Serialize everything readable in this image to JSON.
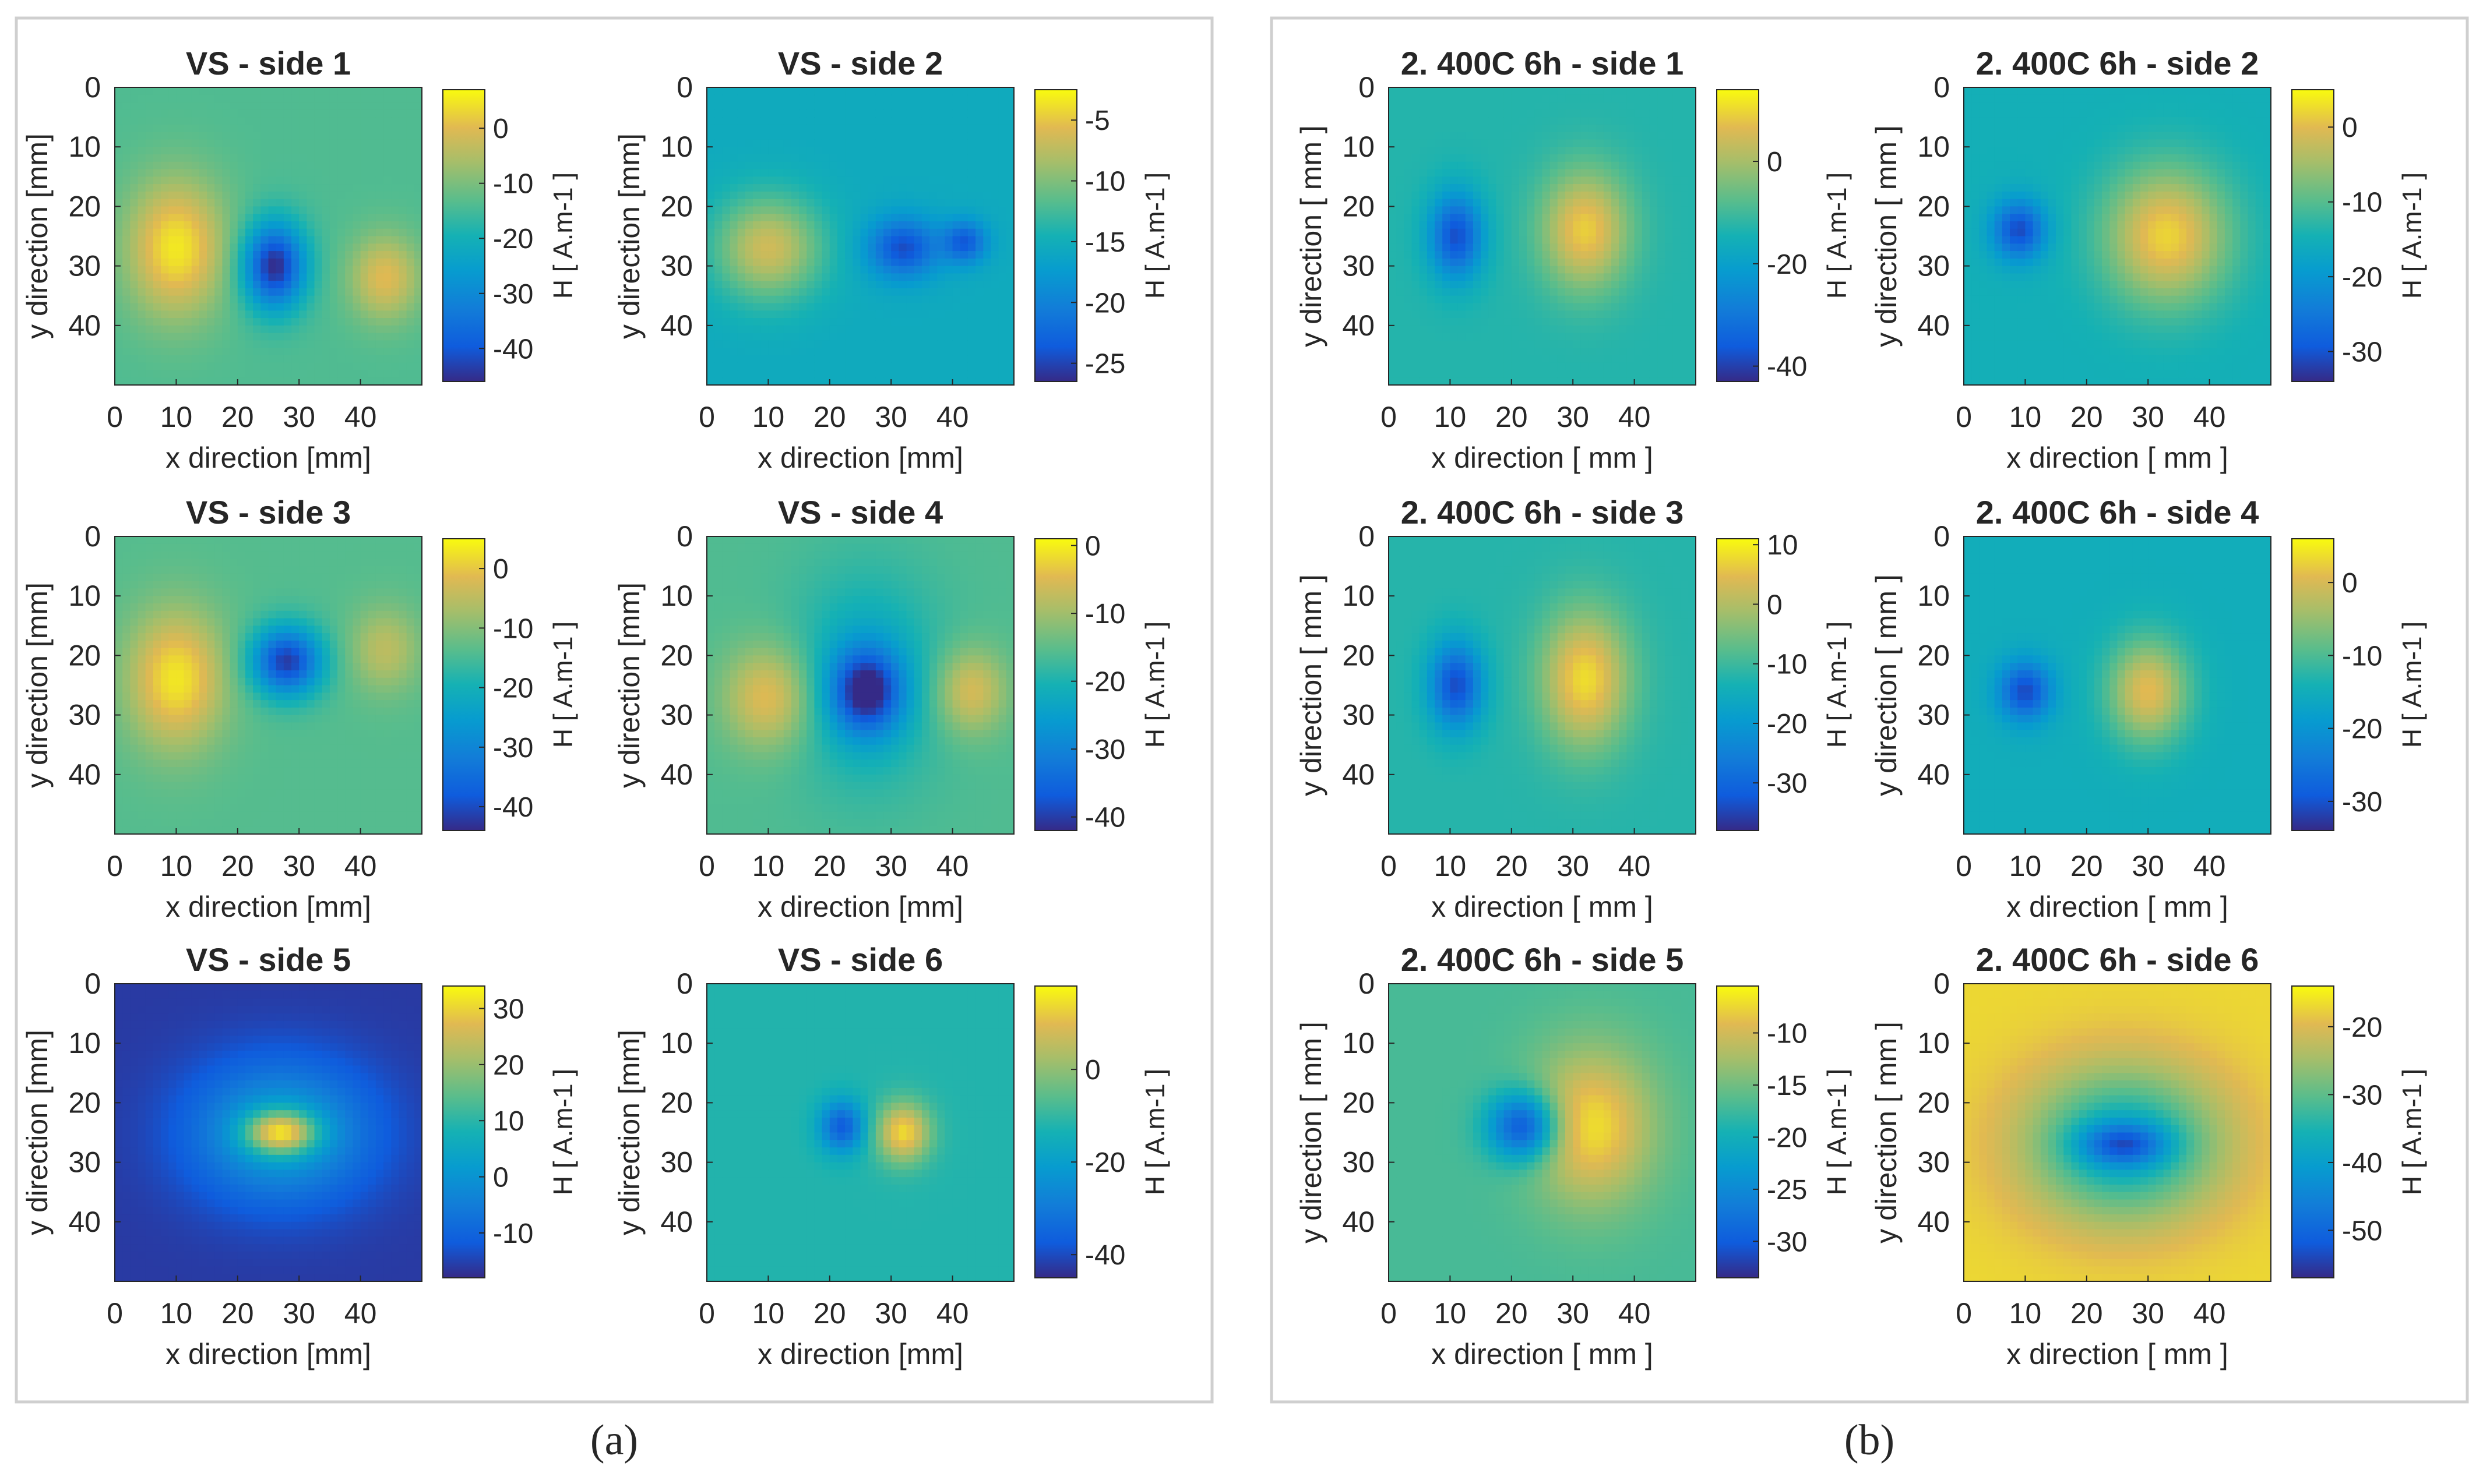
{
  "panels": [
    {
      "label": "(a)"
    },
    {
      "label": "(b)"
    }
  ],
  "chart_data": [
    {
      "type": "heatmap",
      "title": "VS - side 1",
      "xlabel": "x direction [mm]",
      "ylabel": "y direction [mm]",
      "cbar_label": "H [ A.m-1 ]",
      "xticks": [
        0,
        10,
        20,
        30,
        40
      ],
      "yticks": [
        0,
        10,
        20,
        30,
        40
      ],
      "extent": [
        0,
        50
      ],
      "clim": [
        -46,
        7
      ],
      "cbar_ticks": [
        0,
        -10,
        -20,
        -30,
        -40
      ],
      "base": -14,
      "blobs": [
        {
          "x": 10,
          "y": 27,
          "amp": 19,
          "sx": 5.5,
          "sy": 8
        },
        {
          "x": 26,
          "y": 30,
          "amp": -32,
          "sx": 3.5,
          "sy": 5
        },
        {
          "x": 44,
          "y": 32,
          "amp": 14,
          "sx": 4,
          "sy": 5
        }
      ]
    },
    {
      "type": "heatmap",
      "title": "VS - side 2",
      "xlabel": "x direction [mm]",
      "ylabel": "y direction [mm]",
      "cbar_label": "H [ A.m-1 ]",
      "xticks": [
        0,
        10,
        20,
        30,
        40
      ],
      "yticks": [
        0,
        10,
        20,
        30,
        40
      ],
      "extent": [
        0,
        50
      ],
      "clim": [
        -26.5,
        -2.5
      ],
      "cbar_ticks": [
        -5,
        -10,
        -15,
        -20,
        -25
      ],
      "base": -15.5,
      "blobs": [
        {
          "x": 10,
          "y": 27,
          "amp": 9,
          "sx": 6,
          "sy": 6
        },
        {
          "x": 32,
          "y": 27,
          "amp": -9,
          "sx": 4,
          "sy": 3.5
        },
        {
          "x": 42,
          "y": 26,
          "amp": -8,
          "sx": 2.5,
          "sy": 2.5
        }
      ]
    },
    {
      "type": "heatmap",
      "title": "VS - side 3",
      "xlabel": "x direction [mm]",
      "ylabel": "y direction [mm]",
      "cbar_label": "H [ A.m-1 ]",
      "xticks": [
        0,
        10,
        20,
        30,
        40
      ],
      "yticks": [
        0,
        10,
        20,
        30,
        40
      ],
      "extent": [
        0,
        50
      ],
      "clim": [
        -44,
        5
      ],
      "cbar_ticks": [
        0,
        -10,
        -20,
        -30,
        -40
      ],
      "base": -14,
      "blobs": [
        {
          "x": 10,
          "y": 24,
          "amp": 17,
          "sx": 5.5,
          "sy": 8
        },
        {
          "x": 28,
          "y": 21,
          "amp": -28,
          "sx": 4,
          "sy": 4
        },
        {
          "x": 44,
          "y": 19,
          "amp": 9,
          "sx": 4,
          "sy": 5
        }
      ]
    },
    {
      "type": "heatmap",
      "title": "VS - side  4",
      "xlabel": "x direction [mm]",
      "ylabel": "y direction [mm]",
      "cbar_label": "H [ A.m-1 ]",
      "xticks": [
        0,
        10,
        20,
        30,
        40
      ],
      "yticks": [
        0,
        10,
        20,
        30,
        40
      ],
      "extent": [
        0,
        50
      ],
      "clim": [
        -42,
        1
      ],
      "cbar_ticks": [
        0,
        -10,
        -20,
        -30,
        -40
      ],
      "base": -16,
      "blobs": [
        {
          "x": 10,
          "y": 27,
          "amp": 12,
          "sx": 5,
          "sy": 6
        },
        {
          "x": 26,
          "y": 26,
          "amp": -22,
          "sx": 4,
          "sy": 5
        },
        {
          "x": 26,
          "y": 24,
          "amp": -8,
          "sx": 8,
          "sy": 12
        },
        {
          "x": 43,
          "y": 26,
          "amp": 11,
          "sx": 4,
          "sy": 5
        }
      ]
    },
    {
      "type": "heatmap",
      "title": "VS - side 5",
      "xlabel": "x direction [mm]",
      "ylabel": "y direction [mm]",
      "cbar_label": "H [ A.m-1 ]",
      "xticks": [
        0,
        10,
        20,
        30,
        40
      ],
      "yticks": [
        0,
        10,
        20,
        30,
        40
      ],
      "extent": [
        0,
        50
      ],
      "clim": [
        -18,
        34
      ],
      "cbar_ticks": [
        30,
        20,
        10,
        0,
        -10
      ],
      "base": -16,
      "blobs": [
        {
          "x": 27,
          "y": 25,
          "amp": 20,
          "sx": 10,
          "sy": 8
        },
        {
          "x": 27,
          "y": 25,
          "amp": 28,
          "sx": 4,
          "sy": 2.5
        }
      ]
    },
    {
      "type": "heatmap",
      "title": "VS - side 6",
      "xlabel": "x direction [mm]",
      "ylabel": "y direction [mm]",
      "cbar_label": "H [ A.m-1 ]",
      "xticks": [
        0,
        10,
        20,
        30,
        40
      ],
      "yticks": [
        0,
        10,
        20,
        30,
        40
      ],
      "extent": [
        0,
        50
      ],
      "clim": [
        -45,
        18
      ],
      "cbar_ticks": [
        0,
        -20,
        -40
      ],
      "base": -12,
      "blobs": [
        {
          "x": 22,
          "y": 24,
          "amp": -25,
          "sx": 2.5,
          "sy": 3
        },
        {
          "x": 32,
          "y": 25,
          "amp": 26,
          "sx": 3,
          "sy": 3.5
        }
      ]
    },
    {
      "type": "heatmap",
      "title": "2. 400C 6h - side 1",
      "xlabel": "x direction [ mm ]",
      "ylabel": "y direction [ mm ]",
      "cbar_label": "H [ A.m-1 ]",
      "xticks": [
        0,
        10,
        20,
        30,
        40
      ],
      "yticks": [
        0,
        10,
        20,
        30,
        40
      ],
      "extent": [
        0,
        50
      ],
      "clim": [
        -43,
        14
      ],
      "cbar_ticks": [
        0,
        -20,
        -40
      ],
      "base": -13,
      "blobs": [
        {
          "x": 11,
          "y": 25,
          "amp": -25,
          "sx": 3,
          "sy": 5
        },
        {
          "x": 32,
          "y": 24,
          "amp": 22,
          "sx": 5,
          "sy": 7
        }
      ]
    },
    {
      "type": "heatmap",
      "title": "2. 400C 6h - side 2",
      "xlabel": "x direction [ mm ]",
      "ylabel": "y direction [ mm ]",
      "cbar_label": "H [ A.m-1 ]",
      "xticks": [
        0,
        10,
        20,
        30,
        40
      ],
      "yticks": [
        0,
        10,
        20,
        30,
        40
      ],
      "extent": [
        0,
        50
      ],
      "clim": [
        -34,
        5
      ],
      "cbar_ticks": [
        0,
        -10,
        -20,
        -30
      ],
      "base": -15,
      "blobs": [
        {
          "x": 9,
          "y": 24,
          "amp": -16,
          "sx": 3,
          "sy": 3.5
        },
        {
          "x": 33,
          "y": 25,
          "amp": 17,
          "sx": 7,
          "sy": 8
        }
      ]
    },
    {
      "type": "heatmap",
      "title": "2. 400C 6h - side 3",
      "xlabel": "x direction [ mm ]",
      "ylabel": "y direction [ mm ]",
      "cbar_label": "H [ A.m-1 ]",
      "xticks": [
        0,
        10,
        20,
        30,
        40
      ],
      "yticks": [
        0,
        10,
        20,
        30,
        40
      ],
      "extent": [
        0,
        50
      ],
      "clim": [
        -38,
        11
      ],
      "cbar_ticks": [
        10,
        0,
        -10,
        -20,
        -30
      ],
      "base": -12,
      "blobs": [
        {
          "x": 11,
          "y": 25,
          "amp": -22,
          "sx": 3,
          "sy": 5
        },
        {
          "x": 32,
          "y": 24,
          "amp": 20,
          "sx": 5,
          "sy": 8
        }
      ]
    },
    {
      "type": "heatmap",
      "title": "2. 400C 6h - side 4",
      "xlabel": "x direction [ mm ]",
      "ylabel": "y direction [ mm ]",
      "cbar_label": "H [ A.m-1 ]",
      "xticks": [
        0,
        10,
        20,
        30,
        40
      ],
      "yticks": [
        0,
        10,
        20,
        30,
        40
      ],
      "extent": [
        0,
        50
      ],
      "clim": [
        -34,
        6
      ],
      "cbar_ticks": [
        0,
        -10,
        -20,
        -30
      ],
      "base": -15,
      "blobs": [
        {
          "x": 10,
          "y": 26,
          "amp": -16,
          "sx": 3,
          "sy": 3.5
        },
        {
          "x": 30,
          "y": 26,
          "amp": 16,
          "sx": 4.5,
          "sy": 6
        }
      ]
    },
    {
      "type": "heatmap",
      "title": "2. 400C 6h - side 5",
      "xlabel": "x direction [ mm ]",
      "ylabel": "y direction [ mm ]",
      "cbar_label": "H [ A.m-1 ]",
      "xticks": [
        0,
        10,
        20,
        30,
        40
      ],
      "yticks": [
        0,
        10,
        20,
        30,
        40
      ],
      "extent": [
        0,
        50
      ],
      "clim": [
        -33.5,
        -5.5
      ],
      "cbar_ticks": [
        -10,
        -15,
        -20,
        -25,
        -30
      ],
      "base": -17,
      "blobs": [
        {
          "x": 22,
          "y": 24,
          "amp": -15,
          "sx": 4,
          "sy": 4
        },
        {
          "x": 33,
          "y": 24,
          "amp": 10,
          "sx": 7,
          "sy": 9
        }
      ]
    },
    {
      "type": "heatmap",
      "title": "2. 400C 6h - side 6",
      "xlabel": "x direction [ mm ]",
      "ylabel": "y direction [ mm ]",
      "cbar_label": "H [ A.m-1 ]",
      "xticks": [
        0,
        10,
        20,
        30,
        40
      ],
      "yticks": [
        0,
        10,
        20,
        30,
        40
      ],
      "extent": [
        0,
        50
      ],
      "clim": [
        -57,
        -14
      ],
      "cbar_ticks": [
        -20,
        -30,
        -40,
        -50
      ],
      "base": -17,
      "blobs": [
        {
          "x": 26,
          "y": 27,
          "amp": -22,
          "sx": 11,
          "sy": 9
        },
        {
          "x": 26,
          "y": 27,
          "amp": -15,
          "sx": 5,
          "sy": 2.5
        }
      ]
    }
  ]
}
